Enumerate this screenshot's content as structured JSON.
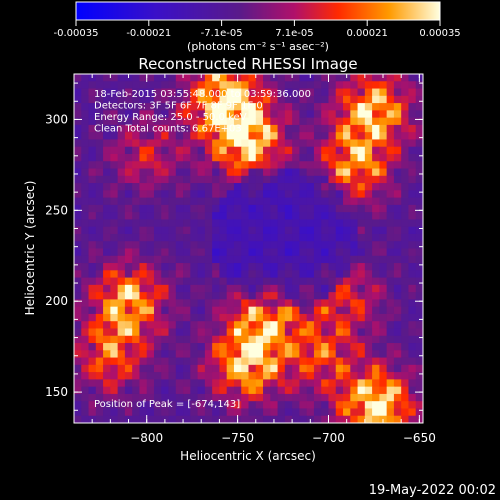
{
  "colorbar": {
    "tick_labels": [
      "-0.00035",
      "-0.00021",
      "-7.1e-05",
      "7.1e-05",
      "0.00021",
      "0.00035"
    ],
    "unit_label": "(photons cm⁻² s⁻¹ asec⁻²)",
    "range": [
      -0.00035,
      0.00035
    ]
  },
  "chart_data": {
    "type": "heatmap",
    "title": "Reconstructed RHESSI Image",
    "xlabel": "Heliocentric X (arcsec)",
    "ylabel": "Heliocentric Y (arcsec)",
    "xlim": [
      -840,
      -648
    ],
    "ylim": [
      133,
      325
    ],
    "x_ticks": [
      -800,
      -750,
      -700,
      -650
    ],
    "y_ticks": [
      150,
      200,
      250,
      300
    ],
    "x_tick_labels": [
      "−800",
      "−750",
      "−700",
      "−650"
    ],
    "y_tick_labels": [
      "150",
      "200",
      "250",
      "300"
    ],
    "annotations": [
      "18-Feb-2015 03:55:48.000 to 03:59:36.000",
      "Detectors: 3F 5F 6F 7F 8F 9F 1F 0",
      "Energy Range: 25.0 - 50.0 keV",
      "Clean     Total counts: 6.67E+03"
    ],
    "peak_label": "Position of Peak = [-674,143]",
    "peak_position": [
      -674,
      143
    ],
    "sources": [
      {
        "x": -745,
        "y": 290,
        "amp": 1.0
      },
      {
        "x": -758,
        "y": 312,
        "amp": 0.9
      },
      {
        "x": -675,
        "y": 305,
        "amp": 0.85
      },
      {
        "x": -685,
        "y": 275,
        "amp": 0.7
      },
      {
        "x": -674,
        "y": 143,
        "amp": 1.0
      },
      {
        "x": -745,
        "y": 165,
        "amp": 0.85
      },
      {
        "x": -735,
        "y": 190,
        "amp": 0.7
      },
      {
        "x": -810,
        "y": 200,
        "amp": 0.8
      },
      {
        "x": -820,
        "y": 170,
        "amp": 0.6
      },
      {
        "x": -800,
        "y": 280,
        "amp": 0.4
      },
      {
        "x": -690,
        "y": 200,
        "amp": 0.45
      },
      {
        "x": -705,
        "y": 170,
        "amp": 0.5
      }
    ]
  },
  "footer": {
    "date": "19-May-2022 00:02"
  }
}
